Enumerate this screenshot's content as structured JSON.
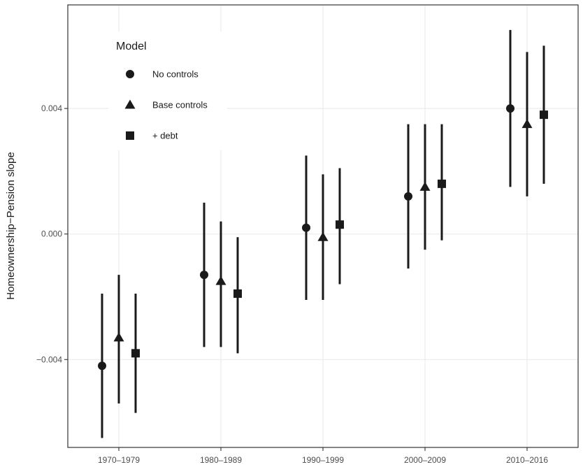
{
  "chart_data": {
    "type": "scatter",
    "title": "",
    "xlabel": "",
    "ylabel": "Homeownership−Pension slope",
    "categories": [
      "1970–1979",
      "1980–1989",
      "1990–1999",
      "2000–2009",
      "2010–2016"
    ],
    "y_ticks": [
      -0.004,
      0.0,
      0.004
    ],
    "y_tick_labels": [
      "−0.004",
      "0.000",
      "0.004"
    ],
    "ylim": [
      -0.0068,
      0.0073
    ],
    "grid": true,
    "legend": {
      "title": "Model",
      "position": "top-left",
      "entries": [
        "No controls",
        "Base controls",
        "+ debt"
      ]
    },
    "series": [
      {
        "name": "No controls",
        "marker": "circle",
        "values": [
          -0.0042,
          -0.0013,
          0.0002,
          0.0012,
          0.004
        ],
        "lower": [
          -0.0065,
          -0.0036,
          -0.0021,
          -0.0011,
          0.0015
        ],
        "upper": [
          -0.0019,
          0.001,
          0.0025,
          0.0035,
          0.0065
        ]
      },
      {
        "name": "Base controls",
        "marker": "triangle",
        "values": [
          -0.0033,
          -0.0015,
          -0.0001,
          0.0015,
          0.0035
        ],
        "lower": [
          -0.0054,
          -0.0036,
          -0.0021,
          -0.0005,
          0.0012
        ],
        "upper": [
          -0.0013,
          0.0004,
          0.0019,
          0.0035,
          0.0058
        ]
      },
      {
        "name": "+ debt",
        "marker": "square",
        "values": [
          -0.0038,
          -0.0019,
          0.0003,
          0.0016,
          0.0038
        ],
        "lower": [
          -0.0057,
          -0.0038,
          -0.0016,
          -0.0002,
          0.0016
        ],
        "upper": [
          -0.0019,
          -0.0001,
          0.0021,
          0.0035,
          0.006
        ]
      }
    ]
  }
}
